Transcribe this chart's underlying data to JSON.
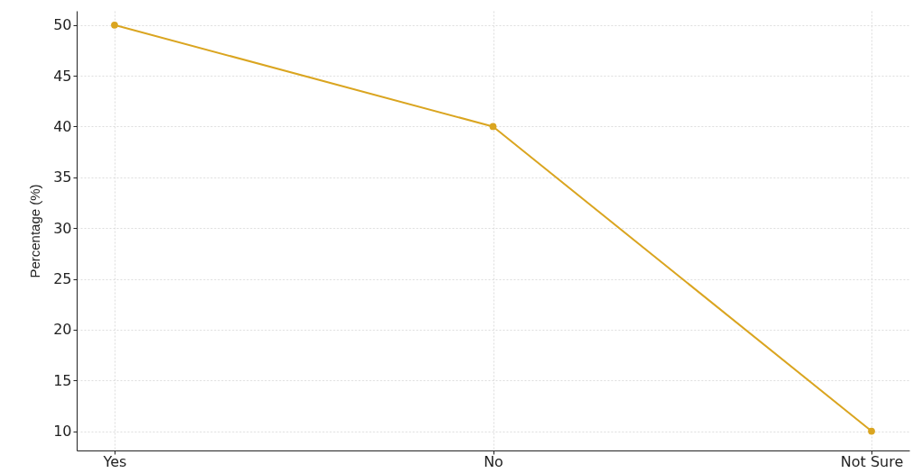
{
  "chart_data": {
    "type": "line",
    "ylabel": "Percentage (%)",
    "categories": [
      "Yes",
      "No",
      "Not Sure"
    ],
    "series": [
      {
        "color": "#daa520",
        "values": [
          50,
          40,
          10
        ]
      }
    ],
    "ylim": [
      8.1,
      51.4
    ],
    "yticks": [
      10,
      15,
      20,
      25,
      30,
      35,
      40,
      45,
      50
    ],
    "grid": true,
    "marker": "circle",
    "line_style": "solid"
  }
}
